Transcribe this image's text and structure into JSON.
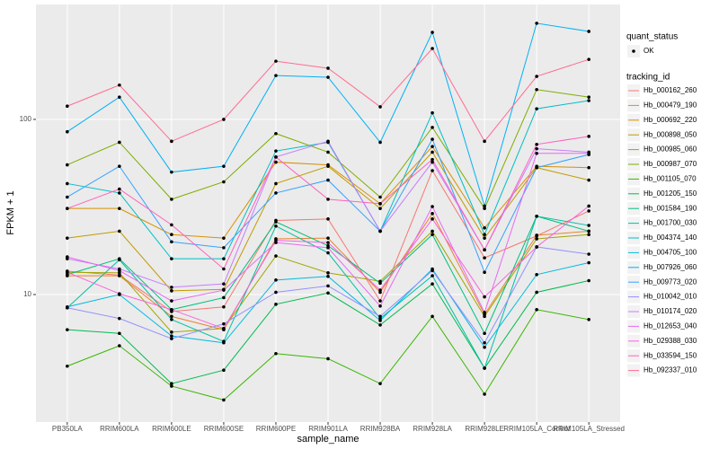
{
  "chart_data": {
    "type": "line",
    "log_scale": true,
    "grid": true,
    "x_label": "sample_name",
    "y_label": "FPKM + 1",
    "categories": [
      "PB350LA",
      "RRIM600LA",
      "RRIM600LE",
      "RRIM600SE",
      "RRIM600PE",
      "RRIM901LA",
      "RRIM928BA",
      "RRIM928LA",
      "RRIM928LE",
      "RRIM105LA_Control",
      "RRIM105LA_Stressed"
    ],
    "ylim": [
      1.87,
      453
    ],
    "yticks": [
      10,
      100
    ],
    "shape_legend": {
      "title": "quant_status",
      "labels": [
        "OK"
      ]
    },
    "legend_title": "tracking_id",
    "series": [
      {
        "name": "Hb_000162_260",
        "color": "#F8766D",
        "values": [
          13.6,
          12.9,
          8,
          8.5,
          26.5,
          27,
          9.2,
          51,
          16.2,
          21.6,
          30
        ]
      },
      {
        "name": "Hb_000479_190",
        "color": "#EA8331",
        "values": [
          12.8,
          12.8,
          7.5,
          6.3,
          20.8,
          21,
          10.3,
          29,
          7.7,
          21.8,
          23
        ]
      },
      {
        "name": "Hb_000692_220",
        "color": "#D89000",
        "values": [
          31,
          31,
          22,
          21,
          57,
          55,
          33,
          70,
          24,
          54,
          53
        ]
      },
      {
        "name": "Hb_000898_050",
        "color": "#C09B00",
        "values": [
          21,
          23,
          10.5,
          10.7,
          43,
          54,
          31,
          65,
          21,
          53,
          45
        ]
      },
      {
        "name": "Hb_000985_060",
        "color": "#A3A500",
        "values": [
          13.4,
          13.3,
          6.1,
          6.4,
          16.6,
          13.3,
          11.9,
          23,
          7.5,
          20.8,
          22
        ]
      },
      {
        "name": "Hb_000987_070",
        "color": "#7CAE00",
        "values": [
          55,
          74,
          35,
          44,
          83,
          65,
          36,
          90,
          31,
          148,
          134
        ]
      },
      {
        "name": "Hb_001105_070",
        "color": "#39B600",
        "values": [
          3.9,
          5.1,
          3.0,
          2.5,
          4.6,
          4.3,
          3.1,
          7.5,
          2.7,
          8.2,
          7.2
        ]
      },
      {
        "name": "Hb_001205_150",
        "color": "#00BB4E",
        "values": [
          6.3,
          6.0,
          3.1,
          3.7,
          8.8,
          10.2,
          6.7,
          11.5,
          3.8,
          10.3,
          12
        ]
      },
      {
        "name": "Hb_001584_190",
        "color": "#00BF7D",
        "values": [
          13,
          16,
          8.2,
          9.6,
          26,
          19,
          11.6,
          22,
          6,
          28,
          23
        ]
      },
      {
        "name": "Hb_001700_030",
        "color": "#00C1A3",
        "values": [
          8.4,
          15.8,
          7.2,
          5.4,
          24.6,
          17.3,
          7.3,
          12.8,
          3.8,
          28,
          24.8
        ]
      },
      {
        "name": "Hb_004374_140",
        "color": "#00BFC4",
        "values": [
          43,
          38,
          16,
          16,
          66,
          74,
          23,
          109,
          22,
          115,
          128
        ]
      },
      {
        "name": "Hb_004705_100",
        "color": "#00BAE0",
        "values": [
          8.5,
          10,
          5.8,
          5.3,
          12.1,
          12.7,
          7.1,
          14,
          5,
          13,
          15.2
        ]
      },
      {
        "name": "Hb_007926_060",
        "color": "#00B0F6",
        "values": [
          85,
          134,
          50,
          54,
          178,
          174,
          74,
          314,
          32,
          354,
          318
        ]
      },
      {
        "name": "Hb_009773_020",
        "color": "#35A2FF",
        "values": [
          36,
          54,
          20,
          18.5,
          38,
          45,
          23,
          77,
          13.4,
          53,
          63
        ]
      },
      {
        "name": "Hb_010042_010",
        "color": "#9590FF",
        "values": [
          8.4,
          7.3,
          5.6,
          6.8,
          10.3,
          11.2,
          7.5,
          13.7,
          5.3,
          18.7,
          17
        ]
      },
      {
        "name": "Hb_010174_020",
        "color": "#C77CFF",
        "values": [
          16,
          14,
          11,
          11.5,
          61,
          75,
          23,
          57,
          18,
          68,
          65
        ]
      },
      {
        "name": "Hb_012653_040",
        "color": "#E76BF3",
        "values": [
          16.4,
          13.7,
          9.2,
          10.6,
          19.8,
          18.5,
          8.6,
          31.8,
          7.9,
          64,
          64
        ]
      },
      {
        "name": "Hb_029388_030",
        "color": "#FA62DB",
        "values": [
          13.4,
          10.1,
          8.2,
          6.4,
          20.4,
          19.8,
          10.6,
          27,
          9.7,
          18.7,
          32
        ]
      },
      {
        "name": "Hb_033594_150",
        "color": "#FF62BC",
        "values": [
          31,
          40,
          25,
          14,
          61,
          35,
          33,
          59,
          18,
          72,
          80
        ]
      },
      {
        "name": "Hb_092337_010",
        "color": "#FF6C91",
        "values": [
          119,
          157,
          75,
          100,
          215,
          196,
          118,
          254,
          75,
          176,
          220
        ]
      }
    ]
  }
}
